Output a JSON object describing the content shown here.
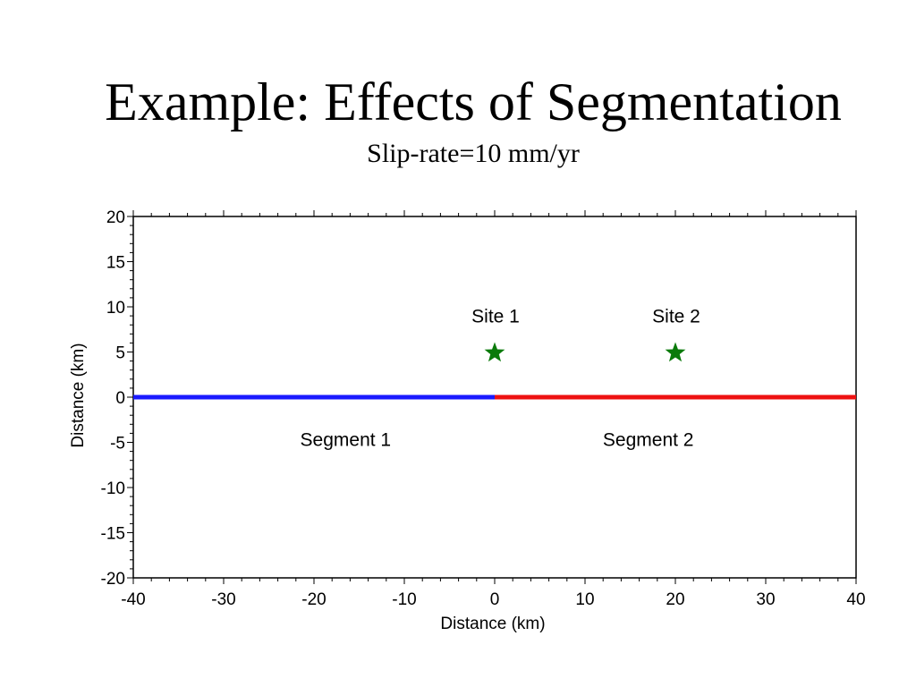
{
  "slide": {
    "title": "Example: Effects of Segmentation",
    "subtitle": "Slip-rate=10 mm/yr"
  },
  "chart_data": {
    "type": "scatter",
    "title": "",
    "xlabel": "Distance (km)",
    "ylabel": "Distance (km)",
    "xlim": [
      -40,
      40
    ],
    "ylim": [
      -20,
      20
    ],
    "xticks": [
      -40,
      -30,
      -20,
      -10,
      0,
      10,
      20,
      30,
      40
    ],
    "yticks": [
      20,
      15,
      10,
      5,
      0,
      -5,
      -10,
      -15,
      -20
    ],
    "grid": false,
    "segments": [
      {
        "label": "Segment 1",
        "x": [
          -40,
          0
        ],
        "y": [
          0,
          0
        ],
        "color": "#1a1aff",
        "label_x": -16.5,
        "label_y": -4.7
      },
      {
        "label": "Segment 2",
        "x": [
          0,
          40
        ],
        "y": [
          0,
          0
        ],
        "color": "#ee1111",
        "label_x": 17,
        "label_y": -4.7
      }
    ],
    "sites": [
      {
        "label": "Site 1",
        "x": 0,
        "y": 5,
        "color": "#0a7a0a",
        "marker": "star-icon"
      },
      {
        "label": "Site 2",
        "x": 20,
        "y": 5,
        "color": "#0a7a0a",
        "marker": "star-icon"
      }
    ]
  }
}
